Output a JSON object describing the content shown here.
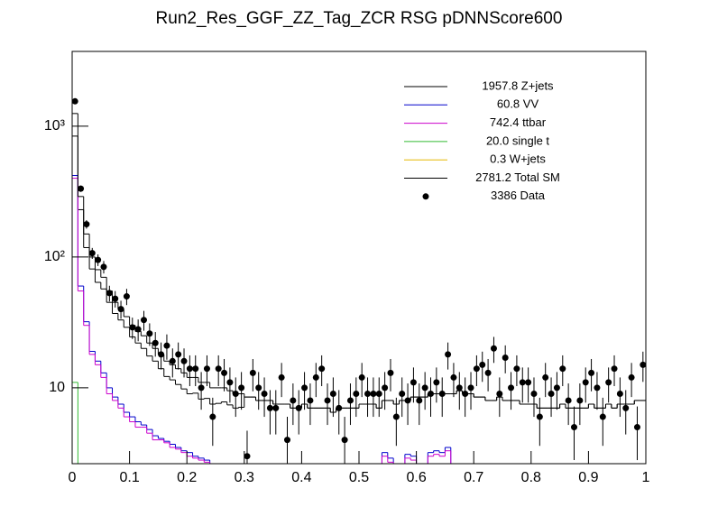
{
  "chart_data": {
    "type": "histogram",
    "title": "Run2_Res_GGF_ZZ_Tag_ZCR RSG  pDNNScore600",
    "bins": [
      0,
      0.01,
      0.02,
      0.03,
      0.04,
      0.05,
      0.06,
      0.07,
      0.08,
      0.09,
      0.1,
      0.11,
      0.12,
      0.13,
      0.14,
      0.15,
      0.16,
      0.17,
      0.18,
      0.19,
      0.2,
      0.21,
      0.22,
      0.23,
      0.24,
      0.25,
      0.26,
      0.27,
      0.28,
      0.29,
      0.3,
      0.31,
      0.32,
      0.33,
      0.34,
      0.35,
      0.36,
      0.37,
      0.38,
      0.39,
      0.4,
      0.41,
      0.42,
      0.43,
      0.44,
      0.45,
      0.46,
      0.47,
      0.48,
      0.49,
      0.5,
      0.51,
      0.52,
      0.53,
      0.54,
      0.55,
      0.56,
      0.57,
      0.58,
      0.59,
      0.6,
      0.61,
      0.62,
      0.63,
      0.64,
      0.65,
      0.66,
      0.67,
      0.68,
      0.69,
      0.7,
      0.71,
      0.72,
      0.73,
      0.74,
      0.75,
      0.76,
      0.77,
      0.78,
      0.79,
      0.8,
      0.81,
      0.82,
      0.83,
      0.84,
      0.85,
      0.86,
      0.87,
      0.88,
      0.89,
      0.9,
      0.91,
      0.92,
      0.93,
      0.94,
      0.95,
      0.96,
      0.97,
      0.98,
      0.99,
      1
    ],
    "series": [
      {
        "name": "1957.8 Z+jets",
        "color": "#000000",
        "values": [
          840,
          230,
          118,
          81,
          64,
          57,
          45,
          37,
          33,
          29,
          24.5,
          22,
          20,
          17.5,
          16,
          14,
          12.2,
          11.5,
          10.6,
          9.8,
          9,
          9.1,
          8.2,
          8.3,
          7.5,
          7.6,
          7.8,
          7.4,
          7,
          7.1,
          8.5,
          8.5,
          8,
          8,
          8,
          7.5,
          7.5,
          7.5,
          7,
          7,
          7.5,
          7,
          7,
          7,
          7,
          6.5,
          7,
          7,
          7,
          7,
          7.5,
          7.5,
          7.5,
          7,
          8,
          8,
          7.5,
          8,
          8,
          8.5,
          8.5,
          8.5,
          9,
          9,
          9,
          9,
          9,
          9.5,
          9,
          9,
          8.5,
          8.5,
          8,
          8,
          8.5,
          8,
          8,
          8,
          7.5,
          7.5,
          7.5,
          7,
          7,
          7,
          7,
          7.5,
          7,
          7,
          7,
          7,
          7.5,
          7,
          7,
          7.5,
          7,
          7.5,
          7.5,
          7.5,
          8,
          8
        ]
      },
      {
        "name": "60.8 VV",
        "color": "#0000cc",
        "values": [
          420,
          60,
          32,
          19,
          16,
          13,
          10,
          8.5,
          7.5,
          6.5,
          6,
          5.5,
          5.2,
          4.8,
          4.3,
          4.1,
          3.9,
          3.7,
          3.5,
          3.3,
          3.2,
          3,
          2.9,
          2.8,
          0,
          0,
          0,
          0,
          0,
          0,
          0,
          0,
          0,
          0,
          0,
          0,
          0,
          0,
          0,
          0,
          0,
          0,
          0,
          0,
          0,
          0,
          0,
          0,
          0,
          0,
          0,
          0,
          0,
          0,
          3.2,
          2.9,
          0,
          0,
          3.1,
          3,
          0,
          0,
          3.2,
          3.3,
          3.2,
          3.5,
          0,
          0,
          0,
          0,
          0,
          0,
          0,
          0,
          0,
          0,
          0,
          0,
          0,
          0,
          0,
          0,
          0,
          0,
          0,
          0,
          0,
          0,
          0,
          0,
          0,
          0,
          0,
          0,
          0,
          0,
          0,
          0,
          0,
          0
        ]
      },
      {
        "name": "742.4 ttbar",
        "color": "#cc00cc",
        "values": [
          400,
          55,
          30,
          18,
          15,
          12,
          9,
          8,
          7,
          6,
          5.5,
          5,
          5,
          4.5,
          4,
          4,
          3.8,
          3.5,
          3.4,
          3.2,
          3,
          2.9,
          2.8,
          2.7,
          0,
          0,
          0,
          0,
          0,
          0,
          0,
          0,
          0,
          0,
          0,
          0,
          0,
          0,
          0,
          0,
          0,
          0,
          0,
          0,
          0,
          0,
          0,
          0,
          0,
          0,
          0,
          0,
          0,
          0,
          3,
          2.7,
          0,
          0,
          2.9,
          2.8,
          0,
          0,
          3,
          3.1,
          3,
          3.3,
          0,
          0,
          0,
          0,
          0,
          0,
          0,
          0,
          0,
          0,
          0,
          0,
          0,
          0,
          0,
          0,
          0,
          0,
          0,
          0,
          0,
          0,
          0,
          0,
          0,
          0,
          0,
          0,
          0,
          0,
          0,
          0,
          0,
          0
        ]
      },
      {
        "name": "20.0 single t",
        "color": "#33bb33",
        "values": [
          11,
          2,
          0,
          0,
          0,
          0,
          0,
          0,
          0,
          0,
          0,
          0,
          0,
          0,
          0,
          0,
          0,
          0,
          0,
          0,
          0,
          0,
          0,
          0,
          0,
          0,
          0,
          0,
          0,
          0,
          0,
          0,
          0,
          0,
          0,
          0,
          0,
          0,
          0,
          0,
          0,
          0,
          0,
          0,
          0,
          0,
          0,
          0,
          0,
          0,
          0,
          0,
          0,
          0,
          0,
          0,
          0,
          0,
          0,
          0,
          0,
          0,
          0,
          0,
          0,
          0,
          0,
          0,
          0,
          0,
          0,
          0,
          0,
          0,
          0,
          0,
          0,
          0,
          0,
          0,
          0,
          0,
          0,
          0,
          0,
          0,
          0,
          0,
          0,
          0,
          0,
          0,
          0,
          0,
          0,
          0,
          0,
          0,
          0,
          0
        ]
      },
      {
        "name": "0.3 W+jets",
        "color": "#e6b800",
        "values": [
          0,
          0,
          0,
          0,
          0,
          0,
          0,
          0,
          0,
          0,
          0,
          0,
          0,
          0,
          0,
          0,
          0,
          0,
          0,
          0,
          0,
          0,
          0,
          0,
          0,
          0,
          0,
          0,
          0,
          0,
          0,
          0,
          0,
          0,
          0,
          0,
          0,
          0,
          0,
          0,
          0,
          0,
          0,
          0,
          0,
          0,
          0,
          0,
          0,
          0,
          0,
          0,
          0,
          0,
          0,
          0,
          0,
          0,
          0,
          0,
          0,
          0,
          0,
          0,
          0,
          0,
          0,
          0,
          0,
          0,
          0,
          0,
          0,
          0,
          0,
          0,
          0,
          0,
          0,
          0,
          0,
          0,
          0,
          0,
          0,
          0,
          0,
          0,
          0,
          0,
          0,
          0,
          0,
          0,
          0,
          0,
          0,
          0,
          0,
          0
        ]
      },
      {
        "name": "2781.2 Total SM",
        "color": "#000000",
        "values": [
          1250,
          290,
          150,
          100,
          80,
          70,
          55,
          45,
          40,
          35,
          30,
          27,
          25,
          22,
          20,
          18,
          16,
          15,
          14,
          13,
          12,
          12,
          11,
          11,
          10,
          10,
          10,
          9.5,
          9,
          9,
          8.5,
          8.5,
          8,
          8,
          8,
          7.5,
          7.5,
          7.5,
          7,
          7,
          7.5,
          7,
          7,
          7,
          7,
          6.5,
          7,
          7,
          7,
          7,
          7.5,
          7.5,
          7.5,
          7,
          8,
          8,
          7.5,
          8,
          8,
          8.5,
          8.5,
          8.5,
          9,
          9,
          9,
          9,
          9,
          9.5,
          9,
          9,
          8.5,
          8.5,
          8,
          8,
          8.5,
          8,
          8,
          8,
          7.5,
          7.5,
          7.5,
          7,
          7,
          7,
          7,
          7.5,
          7,
          7,
          7,
          7,
          7.5,
          7,
          7,
          7.5,
          7,
          7.5,
          7.5,
          7.5,
          8,
          8
        ]
      }
    ],
    "data": {
      "name": "3386 Data",
      "color": "#000000",
      "values": [
        1550,
        333,
        178,
        107,
        95,
        84,
        53,
        48,
        40,
        50,
        29,
        28,
        33,
        26,
        22,
        18,
        21,
        16,
        18,
        16,
        14,
        14,
        10,
        14,
        6,
        14,
        13,
        11,
        9,
        10,
        3,
        13,
        10,
        9,
        7,
        7,
        12,
        4,
        8,
        7,
        10,
        8,
        12,
        14,
        8,
        9,
        7,
        4,
        8,
        9,
        12,
        9,
        9,
        9,
        10,
        13,
        6,
        9,
        8,
        11,
        8,
        10,
        9,
        11,
        9,
        18,
        12,
        10,
        9,
        10,
        14,
        15,
        13,
        20,
        9,
        17,
        10,
        14,
        11,
        11,
        9,
        6,
        12,
        9,
        10,
        14,
        8,
        5,
        8,
        11,
        13,
        10,
        6,
        11,
        14,
        9,
        7,
        12,
        5,
        15
      ],
      "errors": [
        39.4,
        18.2,
        13.3,
        10.3,
        9.7,
        9.2,
        7.3,
        6.9,
        6.3,
        7.1,
        5.4,
        5.3,
        5.7,
        5.1,
        4.7,
        4.2,
        4.6,
        4,
        4.2,
        4,
        3.7,
        3.7,
        3.2,
        3.7,
        2.4,
        3.7,
        3.6,
        3.3,
        3,
        3.2,
        1.7,
        3.6,
        3.2,
        3,
        2.6,
        2.6,
        3.5,
        2,
        2.8,
        2.6,
        3.2,
        2.8,
        3.5,
        3.7,
        2.8,
        3,
        2.6,
        2,
        2.8,
        3,
        3.5,
        3,
        3,
        3,
        3.2,
        3.6,
        2.4,
        3,
        2.8,
        3.3,
        2.8,
        3.2,
        3,
        3.3,
        3,
        4.2,
        3.5,
        3.2,
        3,
        3.2,
        3.7,
        3.9,
        3.6,
        4.5,
        3,
        4.1,
        3.2,
        3.7,
        3.3,
        3.3,
        3,
        2.4,
        3.5,
        3,
        3.2,
        3.7,
        2.8,
        2.2,
        2.8,
        3.3,
        3.6,
        3.2,
        2.4,
        3.3,
        3.7,
        3,
        2.6,
        3.5,
        2.2,
        3.9
      ]
    },
    "xlim": [
      0,
      1
    ],
    "xticks": [
      0,
      0.1,
      0.2,
      0.3,
      0.4,
      0.5,
      0.6,
      0.7,
      0.8,
      0.9,
      1
    ],
    "ylim": [
      2.63,
      3730
    ],
    "yscale": "log",
    "yticks": [
      10,
      {
        "value": 100,
        "label": "10²"
      },
      {
        "value": 1000,
        "label": "10³"
      }
    ]
  }
}
